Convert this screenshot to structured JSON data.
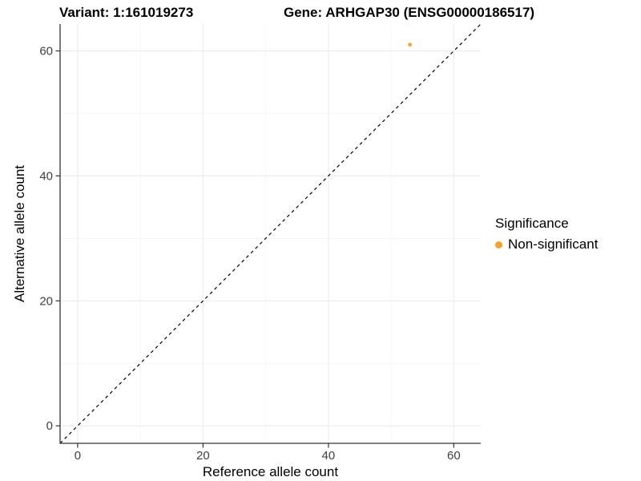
{
  "chart_data": {
    "type": "scatter",
    "titles": [
      "Variant: 1:161019273",
      "Gene: ARHGAP30 (ENSG00000186517)"
    ],
    "xlabel": "Reference allele count",
    "ylabel": "Alternative allele count",
    "xlim": [
      -2.8,
      64.3
    ],
    "ylim": [
      -2.8,
      64.3
    ],
    "x_ticks": [
      0,
      20,
      40,
      60
    ],
    "y_ticks": [
      0,
      20,
      40,
      60
    ],
    "x_minor_ticks": [
      10,
      30,
      50
    ],
    "y_minor_ticks": [
      10,
      30,
      50
    ],
    "grid": true,
    "points": [
      {
        "x": 53,
        "y": 61,
        "series": "Non-significant"
      }
    ],
    "reference_line": {
      "type": "identity-diagonal",
      "slope": 1,
      "intercept": 0,
      "style": "dashed",
      "color": "#000000"
    },
    "legend": {
      "title": "Significance",
      "position": "right",
      "items": [
        {
          "label": "Non-significant",
          "color": "#F9A02E"
        }
      ]
    },
    "colors": {
      "point": "#F9A02E",
      "grid_major": "#EBEBEB",
      "grid_minor": "#F4F4F4",
      "axis_line": "#333333",
      "tick_mark": "#333333",
      "tick_label": "#404040",
      "text": "#000000",
      "background": "#FFFFFF"
    }
  }
}
